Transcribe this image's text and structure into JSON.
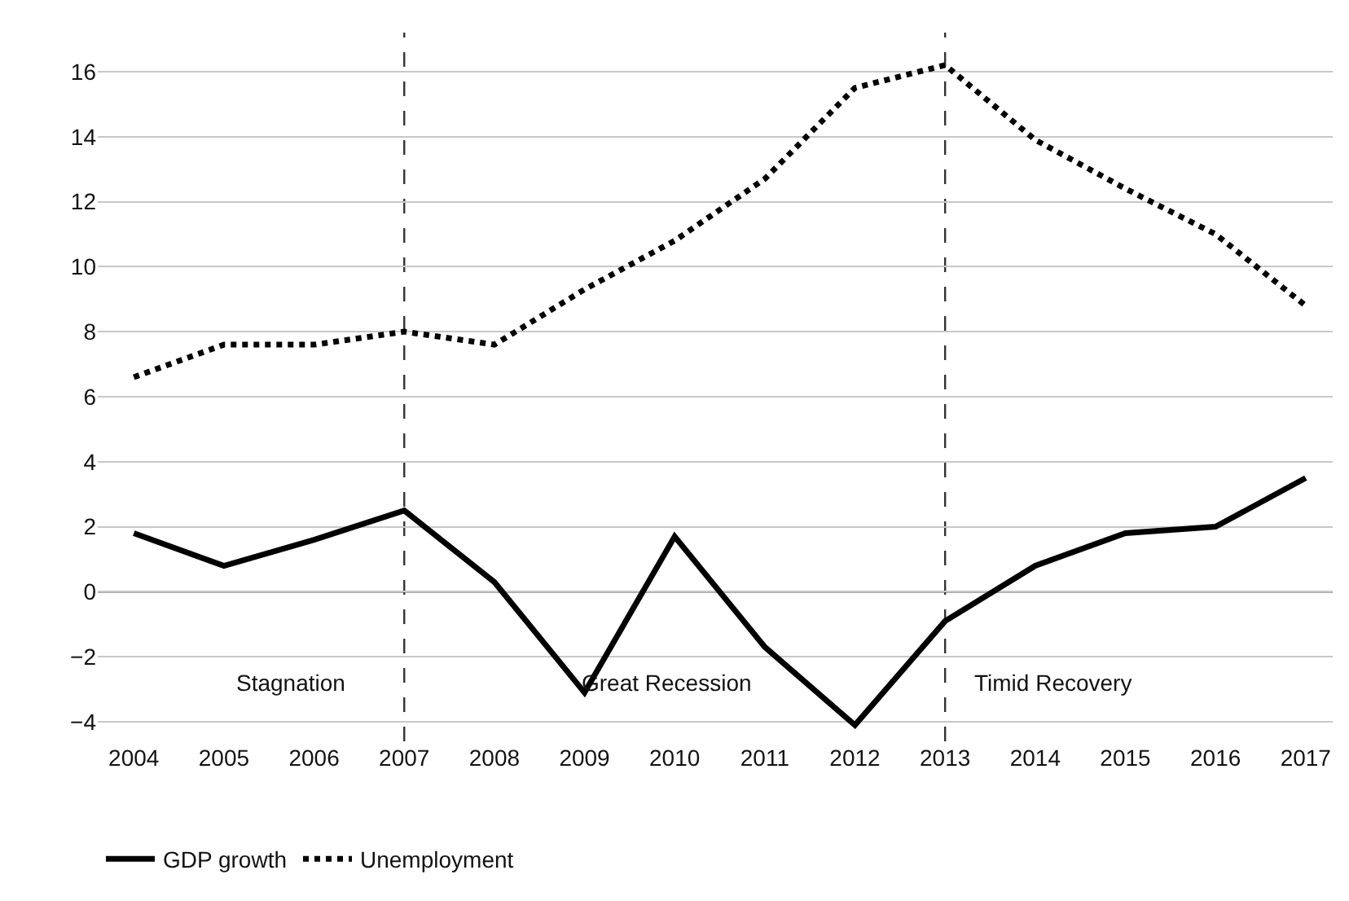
{
  "chart_data": {
    "type": "line",
    "x": [
      2004,
      2005,
      2006,
      2007,
      2008,
      2009,
      2010,
      2011,
      2012,
      2013,
      2014,
      2015,
      2016,
      2017
    ],
    "series": [
      {
        "name": "GDP growth",
        "color": "#000000",
        "line_style": "solid",
        "values": [
          1.8,
          0.8,
          1.6,
          2.5,
          0.3,
          -3.1,
          1.7,
          -1.7,
          -4.1,
          -0.9,
          0.8,
          1.8,
          2.0,
          3.5
        ]
      },
      {
        "name": "Unemployment",
        "color": "#000000",
        "line_style": "dotted",
        "values": [
          6.6,
          7.6,
          7.6,
          8.0,
          7.6,
          9.3,
          10.8,
          12.7,
          15.5,
          16.2,
          13.9,
          12.4,
          11.0,
          8.8
        ]
      }
    ],
    "xlim": [
      2003.6,
      2017.3
    ],
    "xticks": [
      2004,
      2005,
      2006,
      2007,
      2008,
      2009,
      2010,
      2011,
      2012,
      2013,
      2014,
      2015,
      2016,
      2017
    ],
    "ylim": [
      -4.6,
      17.2
    ],
    "yticks": [
      -4,
      -2,
      0,
      2,
      4,
      6,
      8,
      10,
      12,
      14,
      16
    ],
    "grid": "y",
    "legend": "bottom left",
    "marker": "none",
    "ref_lines": [
      {
        "axis": "x",
        "value": 2007,
        "line_style": "dashed",
        "color": "#333333"
      },
      {
        "axis": "x",
        "value": 2013,
        "line_style": "dashed",
        "color": "#333333"
      },
      {
        "axis": "y",
        "value": 0,
        "color": "#555555"
      }
    ],
    "annotations": [
      "Stagnation",
      "Great Recession",
      "Timid Recovery"
    ]
  }
}
